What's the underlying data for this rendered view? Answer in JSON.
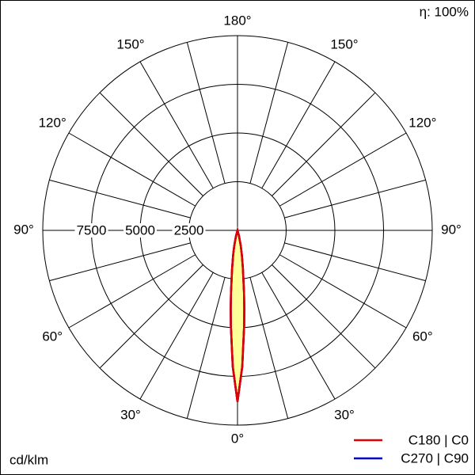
{
  "chart_data": {
    "type": "polar",
    "efficiency_label": "η: 100%",
    "unit_label": "cd/klm",
    "x": [
      -20,
      -15,
      -12,
      -10,
      -8,
      -6,
      -5,
      -4,
      -2,
      0,
      2,
      4,
      5,
      6,
      8,
      10,
      12,
      15,
      20
    ],
    "series": [
      {
        "name": "C180 | C0",
        "color": "#e00000",
        "values": [
          0,
          300,
          800,
          1300,
          2000,
          3200,
          4000,
          4900,
          7000,
          8800,
          7000,
          4900,
          4000,
          3200,
          2000,
          1300,
          800,
          300,
          0
        ]
      },
      {
        "name": "C270 | C90",
        "color": "#0000c0",
        "values": [
          0,
          300,
          800,
          1300,
          2000,
          3200,
          4000,
          4900,
          7000,
          8800,
          7000,
          4900,
          4000,
          3200,
          2000,
          1300,
          800,
          300,
          0
        ]
      }
    ],
    "fill": "#ffff99",
    "rlim": [
      0,
      10000
    ],
    "rticks": [
      2500,
      5000,
      7500
    ],
    "xticks": [
      {
        "value": 0,
        "label": "0°"
      },
      {
        "value": 30,
        "label": "30°"
      },
      {
        "value": 60,
        "label": "60°"
      },
      {
        "value": 90,
        "label": "90°"
      },
      {
        "value": 120,
        "label": "120°"
      },
      {
        "value": 150,
        "label": "150°"
      },
      {
        "value": 180,
        "label": "180°"
      }
    ],
    "angle_grid_step": 15
  }
}
